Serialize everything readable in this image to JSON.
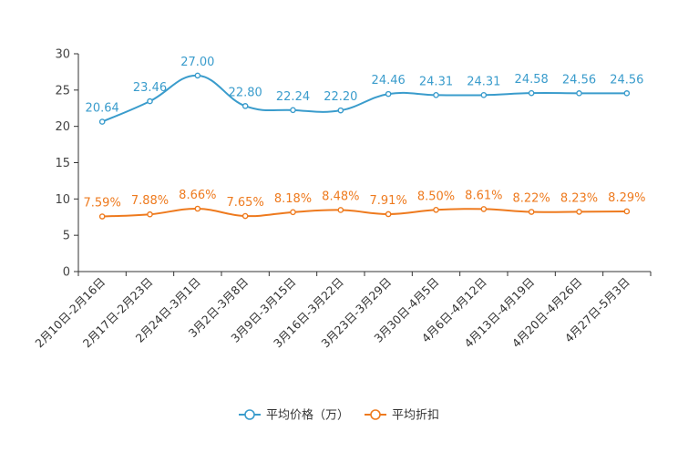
{
  "chart_data": {
    "type": "line",
    "title": "",
    "xlabel": "",
    "ylabel": "",
    "ylim": [
      0,
      30
    ],
    "yticks": [
      0,
      5,
      10,
      15,
      20,
      25,
      30
    ],
    "categories": [
      "2月10日-2月16日",
      "2月17日-2月23日",
      "2月24日-3月1日",
      "3月2日-3月8日",
      "3月9日-3月15日",
      "3月16日-3月22日",
      "3月23日-3月29日",
      "3月30日-4月5日",
      "4月6日-4月12日",
      "4月13日-4月19日",
      "4月20日-4月26日",
      "4月27日-5月3日"
    ],
    "series": [
      {
        "name": "平均价格（万）",
        "color": "#3a9ccc",
        "values": [
          20.64,
          23.46,
          27.0,
          22.8,
          22.24,
          22.2,
          24.46,
          24.31,
          24.31,
          24.58,
          24.56,
          24.56
        ],
        "labels": [
          "20.64",
          "23.46",
          "27.00",
          "22.80",
          "22.24",
          "22.20",
          "24.46",
          "24.31",
          "24.31",
          "24.58",
          "24.56",
          "24.56"
        ]
      },
      {
        "name": "平均折扣",
        "color": "#ee7a1e",
        "values": [
          7.59,
          7.88,
          8.66,
          7.65,
          8.18,
          8.48,
          7.91,
          8.5,
          8.61,
          8.22,
          8.23,
          8.29
        ],
        "labels": [
          "7.59%",
          "7.88%",
          "8.66%",
          "7.65%",
          "8.18%",
          "8.48%",
          "7.91%",
          "8.50%",
          "8.61%",
          "8.22%",
          "8.23%",
          "8.29%"
        ]
      }
    ],
    "legend": "bottom-center",
    "grid": false
  }
}
